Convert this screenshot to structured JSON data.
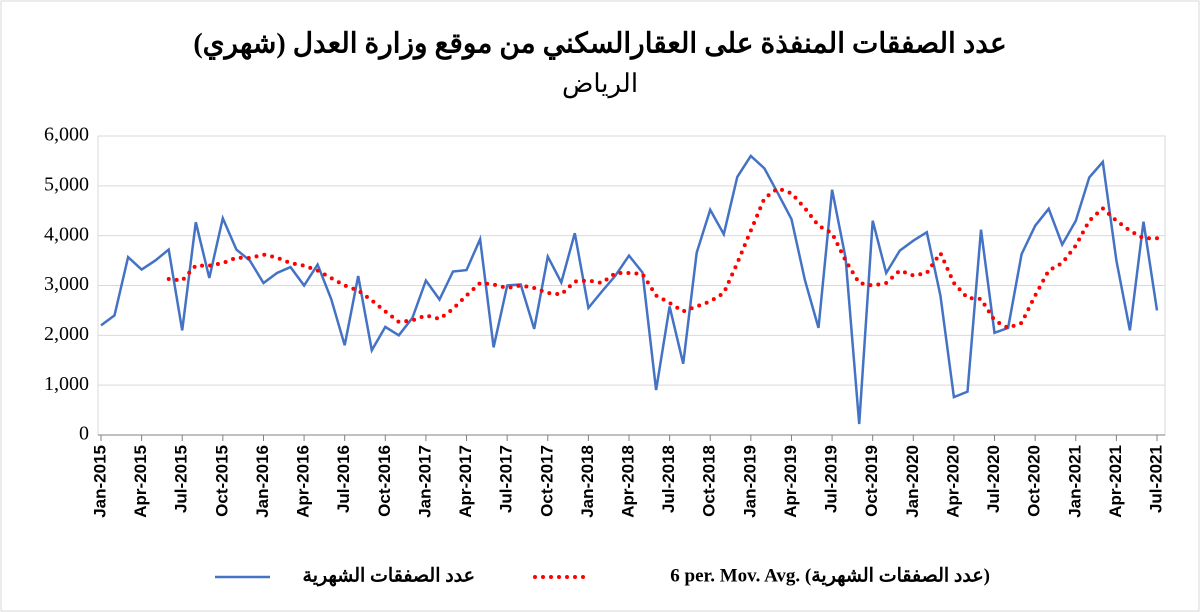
{
  "chart_data": {
    "type": "line",
    "title": "عدد الصفقات المنفذة على العقارالسكني من موقع وزارة العدل (شهري)",
    "subtitle": "الرياض",
    "categories": [
      "Jan-2015",
      null,
      null,
      "Apr-2015",
      null,
      null,
      "Jul-2015",
      null,
      null,
      "Oct-2015",
      null,
      null,
      "Jan-2016",
      null,
      null,
      "Apr-2016",
      null,
      null,
      "Jul-2016",
      null,
      null,
      "Oct-2016",
      null,
      null,
      "Jan-2017",
      null,
      null,
      "Apr-2017",
      null,
      null,
      "Jul-2017",
      null,
      null,
      "Oct-2017",
      null,
      null,
      "Jan-2018",
      null,
      null,
      "Apr-2018",
      null,
      null,
      "Jul-2018",
      null,
      null,
      "Oct-2018",
      null,
      null,
      "Jan-2019",
      null,
      null,
      "Apr-2019",
      null,
      null,
      "Jul-2019",
      null,
      null,
      "Oct-2019",
      null,
      null,
      "Jan-2020",
      null,
      null,
      "Apr-2020",
      null,
      null,
      "Jul-2020",
      null,
      null,
      "Oct-2020",
      null,
      null,
      "Jan-2021",
      null,
      null,
      "Apr-2021",
      null,
      null,
      "Jul-2021"
    ],
    "series": [
      {
        "name": "عدد الصفقات الشهرية",
        "color": "#4472c4",
        "style": "solid",
        "values": [
          2200,
          2400,
          3570,
          3320,
          3500,
          3720,
          2100,
          4270,
          3150,
          4350,
          3720,
          3500,
          3050,
          3250,
          3370,
          3000,
          3420,
          2730,
          1800,
          3190,
          1700,
          2170,
          2000,
          2350,
          3100,
          2720,
          3280,
          3310,
          3930,
          1760,
          3000,
          3020,
          2130,
          3580,
          3060,
          4050,
          2550,
          2880,
          3200,
          3600,
          3260,
          900,
          2580,
          1430,
          3660,
          4520,
          4030,
          5180,
          5600,
          5350,
          4850,
          4330,
          3100,
          2150,
          4920,
          3550,
          220,
          4300,
          3250,
          3700,
          3900,
          4070,
          2800,
          760,
          870,
          4120,
          2050,
          2150,
          3630,
          4200,
          4540,
          3820,
          4300,
          5170,
          5480,
          3500,
          2100,
          4280,
          2500
        ]
      },
      {
        "name": "6 per. Mov. Avg. (عدد الصفقات الشهرية)",
        "color": "#ff0000",
        "style": "dotted",
        "values": [
          null,
          null,
          null,
          null,
          null,
          3130,
          3100,
          3400,
          3400,
          3450,
          3560,
          3550,
          3620,
          3560,
          3450,
          3400,
          3300,
          3150,
          3000,
          2900,
          2700,
          2480,
          2270,
          2300,
          2400,
          2330,
          2530,
          2800,
          3050,
          3020,
          2950,
          3000,
          2950,
          2850,
          2820,
          3080,
          3100,
          3050,
          3250,
          3250,
          3230,
          2800,
          2650,
          2480,
          2580,
          2680,
          2850,
          3450,
          4100,
          4750,
          4950,
          4850,
          4550,
          4200,
          4050,
          3500,
          3050,
          3000,
          3050,
          3300,
          3200,
          3250,
          3650,
          3050,
          2750,
          2730,
          2300,
          2150,
          2250,
          2800,
          3300,
          3450,
          3800,
          4300,
          4550,
          4300,
          4100,
          3950,
          3950
        ]
      }
    ],
    "ylim": [
      0,
      6000
    ],
    "yticks": [
      0,
      {
        "value": 1000,
        "label": "1,000"
      },
      {
        "value": 2000,
        "label": "2,000"
      },
      {
        "value": 3000,
        "label": "3,000"
      },
      {
        "value": 4000,
        "label": "4,000"
      },
      {
        "value": 5000,
        "label": "5,000"
      },
      {
        "value": 6000,
        "label": "6,000"
      }
    ],
    "grid": true,
    "legend": "bottom"
  }
}
